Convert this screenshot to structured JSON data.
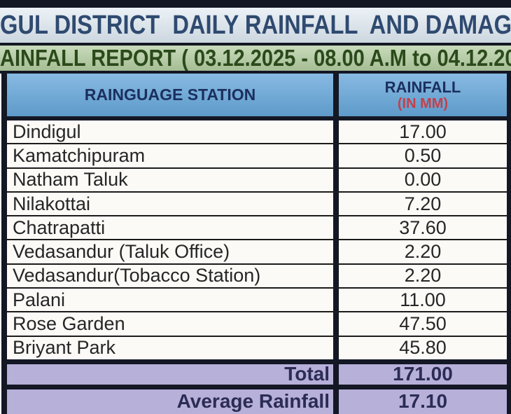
{
  "header": {
    "title": "GUL DISTRICT  DAILY RAINFALL  AND DAMAG",
    "report_line": "AINFALL REPORT ( 03.12.2025 - 08.00 A.M to 04.12.20"
  },
  "table": {
    "columns": {
      "station": "RAINGUAGE STATION",
      "rainfall": "RAINFALL",
      "rainfall_unit": "(IN MM)"
    },
    "rows": [
      {
        "station": "Dindigul",
        "rainfall": "17.00"
      },
      {
        "station": "Kamatchipuram",
        "rainfall": "0.50"
      },
      {
        "station": "Natham Taluk",
        "rainfall": "0.00"
      },
      {
        "station": "Nilakottai",
        "rainfall": "7.20"
      },
      {
        "station": "Chatrapatti",
        "rainfall": "37.60"
      },
      {
        "station": "Vedasandur (Taluk Office)",
        "rainfall": "2.20"
      },
      {
        "station": "Vedasandur(Tobacco Station)",
        "rainfall": "2.20"
      },
      {
        "station": "Palani",
        "rainfall": "11.00"
      },
      {
        "station": "Rose Garden",
        "rainfall": "47.50"
      },
      {
        "station": "Briyant Park",
        "rainfall": "45.80"
      }
    ],
    "summary": {
      "total_label": "Total",
      "total_value": "171.00",
      "average_label": "Average Rainfall",
      "average_value": "17.10"
    }
  },
  "colors": {
    "frame_dark": "#141724",
    "title_text": "#2f4a70",
    "title_bg": "#dce7f0",
    "report_bg": "#b3cda1",
    "report_text": "#2b4a1a",
    "header_bg": "#66a7db",
    "header_text": "#1b2f5e",
    "unit_red": "#c2414b",
    "row_bg": "#fbfaf6",
    "row_text": "#262626",
    "summary_bg": "#b7b0d9",
    "summary_text": "#2b2c56"
  }
}
